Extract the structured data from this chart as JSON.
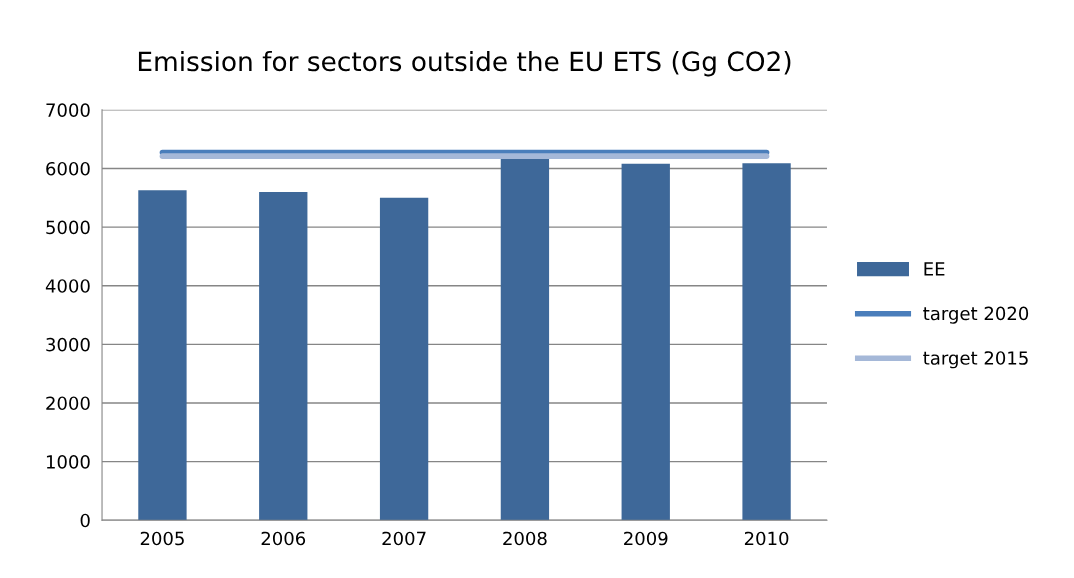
{
  "chart_data": {
    "type": "bar",
    "title": "Emission for sectors outside the EU ETS (Gg CO2)",
    "categories": [
      "2005",
      "2006",
      "2007",
      "2008",
      "2009",
      "2010"
    ],
    "series": [
      {
        "name": "EE",
        "color": "#3e6899",
        "values": [
          5630,
          5600,
          5500,
          6160,
          6080,
          6090
        ]
      },
      {
        "name": "target 2020",
        "type": "line",
        "color": "#4a7ebb",
        "values": [
          6270,
          6270,
          6270,
          6270,
          6270,
          6270
        ]
      },
      {
        "name": "target 2015",
        "type": "line",
        "color": "#a5b8d8",
        "values": [
          6210,
          6210,
          6210,
          6210,
          6210,
          6210
        ]
      }
    ],
    "ylim": [
      0,
      7000
    ],
    "yticks": [
      0,
      1000,
      2000,
      3000,
      4000,
      5000,
      6000,
      7000
    ],
    "grid": "y",
    "legend": "right"
  }
}
